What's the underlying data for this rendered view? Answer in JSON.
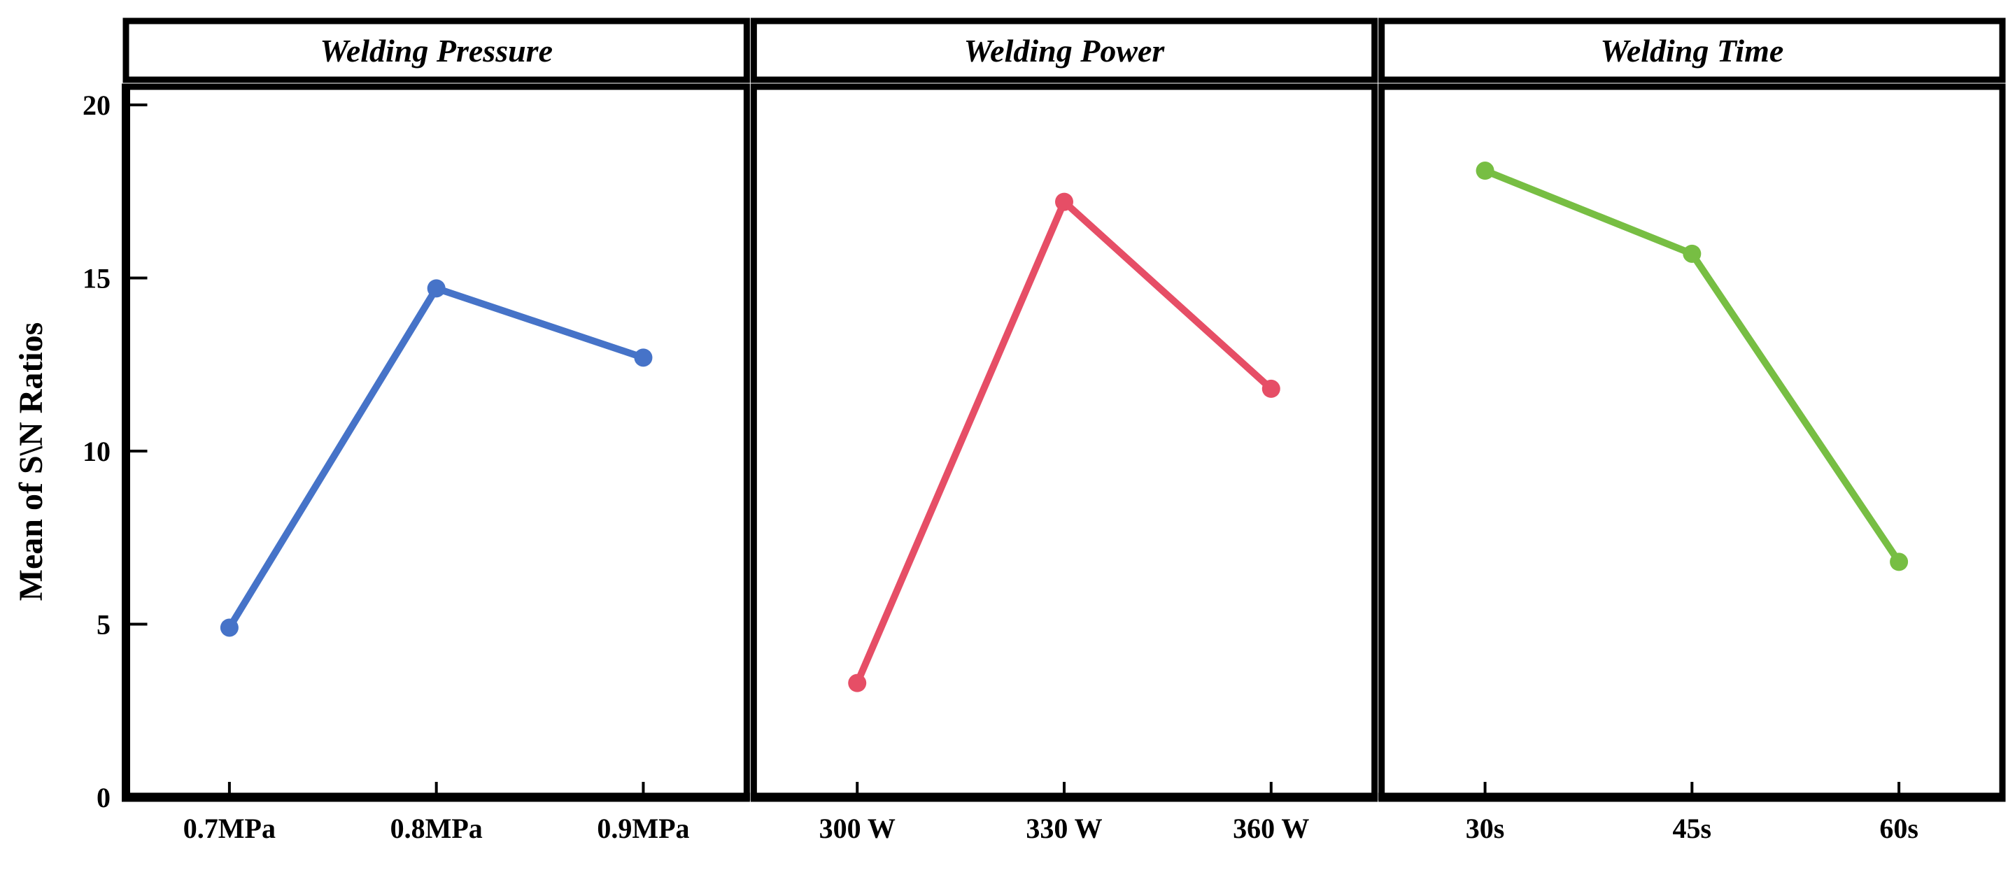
{
  "chart_data": {
    "type": "line",
    "ylabel": "Mean of S\\N Ratios",
    "ylim": [
      0,
      20.6
    ],
    "yticks": [
      0,
      5,
      10,
      15,
      20
    ],
    "grid": false,
    "legend": "none",
    "marker": "circle",
    "panels": [
      {
        "title": "Welding Pressure",
        "color": "#4673C8",
        "categories": [
          "0.7MPa",
          "0.8MPa",
          "0.9MPa"
        ],
        "values": [
          4.9,
          14.7,
          12.7
        ]
      },
      {
        "title": "Welding Power",
        "color": "#E64E66",
        "categories": [
          "300 W",
          "330 W",
          "360 W"
        ],
        "values": [
          3.3,
          17.2,
          11.8
        ]
      },
      {
        "title": "Welding Time",
        "color": "#77BE43",
        "categories": [
          "30s",
          "45s",
          "60s"
        ],
        "values": [
          18.1,
          15.7,
          6.8
        ]
      }
    ]
  },
  "colors": {
    "frame": "#000000",
    "text": "#000000",
    "background": "#FFFFFF"
  }
}
